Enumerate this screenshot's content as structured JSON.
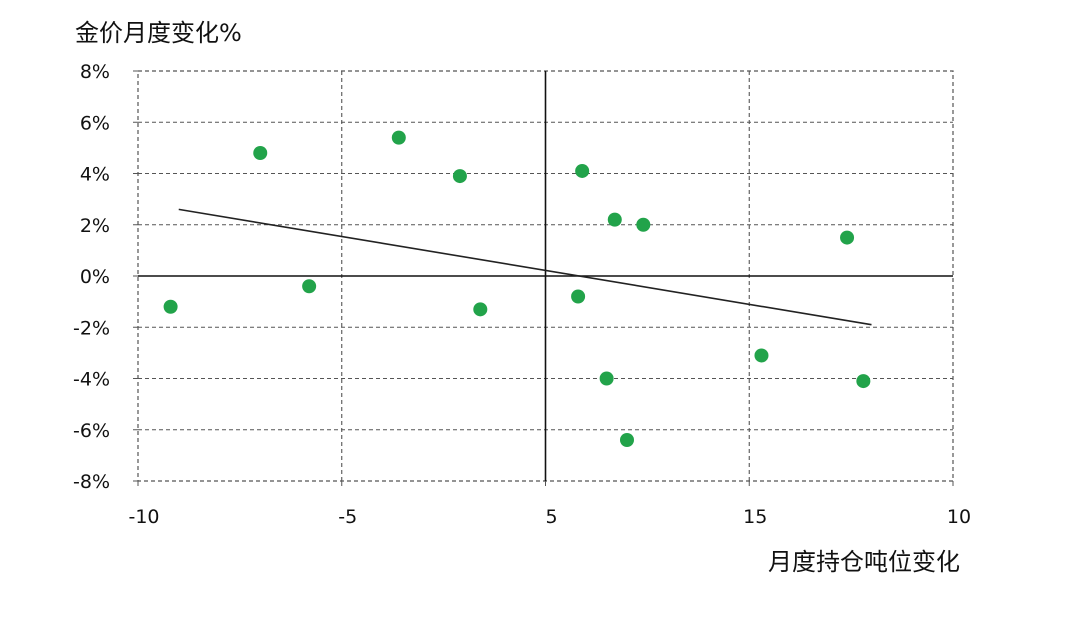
{
  "chart_data": {
    "type": "scatter",
    "ylabel": "金价月度变化%",
    "xlabel": "月度持仓吨位变化",
    "x_tick_labels": [
      "-10",
      "-5",
      "5",
      "15",
      "10"
    ],
    "y_tick_labels": [
      "8%",
      "6%",
      "4%",
      "2%",
      "0%",
      "-2%",
      "-4%",
      "-6%",
      "-8%"
    ],
    "y_ticks": [
      8,
      6,
      4,
      2,
      0,
      -2,
      -4,
      -6,
      -8
    ],
    "grid": true,
    "legend": "none",
    "point_color": "#22a34a",
    "trendline": {
      "x": [
        -9.0,
        8.0
      ],
      "y": [
        2.6,
        -1.9
      ],
      "color": "#222222"
    },
    "points": [
      {
        "x": -9.2,
        "y": -1.2
      },
      {
        "x": -7.0,
        "y": 4.8
      },
      {
        "x": -5.8,
        "y": -0.4
      },
      {
        "x": -3.6,
        "y": 5.4
      },
      {
        "x": -2.1,
        "y": 3.9
      },
      {
        "x": -1.6,
        "y": -1.3
      },
      {
        "x": 0.8,
        "y": -0.8
      },
      {
        "x": 0.9,
        "y": 4.1
      },
      {
        "x": 1.5,
        "y": -4.0
      },
      {
        "x": 1.7,
        "y": 2.2
      },
      {
        "x": 2.0,
        "y": -6.4
      },
      {
        "x": 2.4,
        "y": 2.0
      },
      {
        "x": 5.3,
        "y": -3.1
      },
      {
        "x": 7.4,
        "y": 1.5
      },
      {
        "x": 7.8,
        "y": -4.1
      }
    ]
  }
}
